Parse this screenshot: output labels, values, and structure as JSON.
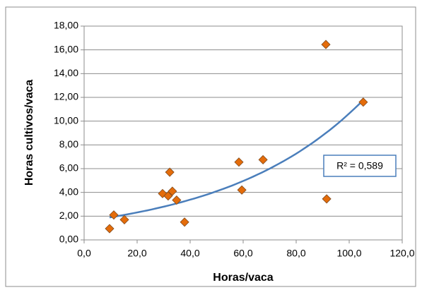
{
  "chart_data": {
    "type": "scatter",
    "x_label": "Horas/vaca",
    "y_label": "Horas cultivos/vaca",
    "annotation": "R² = 0,589",
    "trendline": "exponential",
    "grid": true,
    "series": [
      {
        "color": "#e46c0a",
        "x": [
          9.6,
          11.2,
          15.2,
          29.6,
          32.3,
          31.7,
          33.3,
          34.9,
          37.9,
          58.4,
          59.5,
          67.5,
          91.2,
          91.5,
          105.3
        ],
        "values": [
          0.95,
          2.1,
          1.7,
          3.9,
          5.7,
          3.7,
          4.1,
          3.35,
          1.5,
          6.55,
          4.2,
          6.75,
          16.45,
          3.45,
          11.6
        ]
      }
    ],
    "xlim": [
      0,
      120
    ],
    "xticks": [
      {
        "value": 0,
        "label": "0,0"
      },
      {
        "value": 20,
        "label": "20,0"
      },
      {
        "value": 40,
        "label": "40,0"
      },
      {
        "value": 60,
        "label": "60,0"
      },
      {
        "value": 80,
        "label": "80,0"
      },
      {
        "value": 100,
        "label": "100,0"
      },
      {
        "value": 120,
        "label": "120,0"
      }
    ],
    "ylim": [
      0,
      18
    ],
    "yticks": [
      {
        "value": 0,
        "label": "0,00"
      },
      {
        "value": 2,
        "label": "2,00"
      },
      {
        "value": 4,
        "label": "4,00"
      },
      {
        "value": 6,
        "label": "6,00"
      },
      {
        "value": 8,
        "label": "8,00"
      },
      {
        "value": 10,
        "label": "10,00"
      },
      {
        "value": 12,
        "label": "12,00"
      },
      {
        "value": 14,
        "label": "14,00"
      },
      {
        "value": 16,
        "label": "16,00"
      },
      {
        "value": 18,
        "label": "18,00"
      }
    ]
  }
}
